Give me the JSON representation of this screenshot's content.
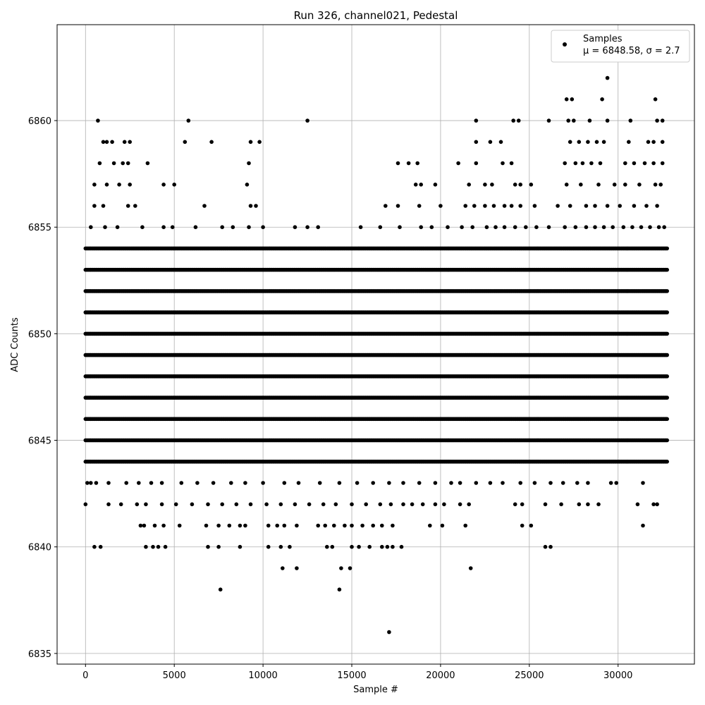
{
  "chart_data": {
    "type": "scatter",
    "title": "Run 326, channel021, Pedestal",
    "xlabel": "Sample #",
    "ylabel": "ADC Counts",
    "xlim": [
      -1600,
      34300
    ],
    "ylim": [
      6834.5,
      6864.5
    ],
    "xticks": [
      0,
      5000,
      10000,
      15000,
      20000,
      25000,
      30000
    ],
    "yticks": [
      6835,
      6840,
      6845,
      6850,
      6855,
      6860
    ],
    "grid": true,
    "legend_position": "top-right",
    "legend": {
      "label_line1": "Samples",
      "label_line2": "μ = 6848.58, σ = 2.7"
    },
    "series": [
      {
        "name": "Samples",
        "color": "#000000",
        "x_range": [
          0,
          32768
        ],
        "dense_levels": [
          6844,
          6845,
          6846,
          6847,
          6848,
          6849,
          6850,
          6851,
          6852,
          6853,
          6854
        ],
        "points": [
          [
            0,
            6842
          ],
          [
            500,
            6840
          ],
          [
            850,
            6840
          ],
          [
            3400,
            6840
          ],
          [
            3800,
            6840
          ],
          [
            4100,
            6840
          ],
          [
            4500,
            6840
          ],
          [
            6900,
            6840
          ],
          [
            7500,
            6840
          ],
          [
            8700,
            6840
          ],
          [
            10300,
            6840
          ],
          [
            11000,
            6840
          ],
          [
            11500,
            6840
          ],
          [
            13600,
            6840
          ],
          [
            13900,
            6840
          ],
          [
            15000,
            6840
          ],
          [
            15400,
            6840
          ],
          [
            16000,
            6840
          ],
          [
            16700,
            6840
          ],
          [
            17000,
            6840
          ],
          [
            17300,
            6840
          ],
          [
            17800,
            6840
          ],
          [
            25900,
            6840
          ],
          [
            26200,
            6840
          ],
          [
            11100,
            6839
          ],
          [
            11900,
            6839
          ],
          [
            14400,
            6839
          ],
          [
            14900,
            6839
          ],
          [
            21700,
            6839
          ],
          [
            7600,
            6838
          ],
          [
            14300,
            6838
          ],
          [
            17100,
            6836
          ],
          [
            700,
            6860
          ],
          [
            5800,
            6860
          ],
          [
            12500,
            6860
          ],
          [
            22000,
            6860
          ],
          [
            24100,
            6860
          ],
          [
            24400,
            6860
          ],
          [
            26100,
            6860
          ],
          [
            27200,
            6860
          ],
          [
            27500,
            6860
          ],
          [
            28400,
            6860
          ],
          [
            29400,
            6860
          ],
          [
            30700,
            6860
          ],
          [
            32200,
            6860
          ],
          [
            32500,
            6860
          ],
          [
            27100,
            6861
          ],
          [
            27400,
            6861
          ],
          [
            29100,
            6861
          ],
          [
            32100,
            6861
          ],
          [
            29400,
            6862
          ],
          [
            1000,
            6859
          ],
          [
            1200,
            6859
          ],
          [
            1500,
            6859
          ],
          [
            2200,
            6859
          ],
          [
            2500,
            6859
          ],
          [
            5600,
            6859
          ],
          [
            7100,
            6859
          ],
          [
            9300,
            6859
          ],
          [
            9800,
            6859
          ],
          [
            22000,
            6859
          ],
          [
            22800,
            6859
          ],
          [
            23400,
            6859
          ],
          [
            27300,
            6859
          ],
          [
            27800,
            6859
          ],
          [
            28300,
            6859
          ],
          [
            28800,
            6859
          ],
          [
            29200,
            6859
          ],
          [
            30600,
            6859
          ],
          [
            31700,
            6859
          ],
          [
            32000,
            6859
          ],
          [
            32500,
            6859
          ],
          [
            800,
            6858
          ],
          [
            1600,
            6858
          ],
          [
            2100,
            6858
          ],
          [
            2400,
            6858
          ],
          [
            3500,
            6858
          ],
          [
            9200,
            6858
          ],
          [
            17600,
            6858
          ],
          [
            18200,
            6858
          ],
          [
            18700,
            6858
          ],
          [
            21000,
            6858
          ],
          [
            22000,
            6858
          ],
          [
            23500,
            6858
          ],
          [
            24000,
            6858
          ],
          [
            27000,
            6858
          ],
          [
            27600,
            6858
          ],
          [
            28000,
            6858
          ],
          [
            28500,
            6858
          ],
          [
            29000,
            6858
          ],
          [
            30400,
            6858
          ],
          [
            30900,
            6858
          ],
          [
            31500,
            6858
          ],
          [
            32000,
            6858
          ],
          [
            32500,
            6858
          ],
          [
            500,
            6857
          ],
          [
            1200,
            6857
          ],
          [
            1900,
            6857
          ],
          [
            2500,
            6857
          ],
          [
            4400,
            6857
          ],
          [
            5000,
            6857
          ],
          [
            9100,
            6857
          ],
          [
            18600,
            6857
          ],
          [
            18900,
            6857
          ],
          [
            19700,
            6857
          ],
          [
            21600,
            6857
          ],
          [
            22500,
            6857
          ],
          [
            22900,
            6857
          ],
          [
            24200,
            6857
          ],
          [
            24500,
            6857
          ],
          [
            25100,
            6857
          ],
          [
            27100,
            6857
          ],
          [
            27900,
            6857
          ],
          [
            28900,
            6857
          ],
          [
            29800,
            6857
          ],
          [
            30400,
            6857
          ],
          [
            31200,
            6857
          ],
          [
            32100,
            6857
          ],
          [
            32400,
            6857
          ],
          [
            500,
            6856
          ],
          [
            1000,
            6856
          ],
          [
            2400,
            6856
          ],
          [
            2800,
            6856
          ],
          [
            6700,
            6856
          ],
          [
            9300,
            6856
          ],
          [
            9600,
            6856
          ],
          [
            16900,
            6856
          ],
          [
            17600,
            6856
          ],
          [
            18800,
            6856
          ],
          [
            20000,
            6856
          ],
          [
            21400,
            6856
          ],
          [
            21900,
            6856
          ],
          [
            22500,
            6856
          ],
          [
            23000,
            6856
          ],
          [
            23600,
            6856
          ],
          [
            24000,
            6856
          ],
          [
            24500,
            6856
          ],
          [
            25300,
            6856
          ],
          [
            26600,
            6856
          ],
          [
            27300,
            6856
          ],
          [
            28200,
            6856
          ],
          [
            28700,
            6856
          ],
          [
            29400,
            6856
          ],
          [
            30100,
            6856
          ],
          [
            30900,
            6856
          ],
          [
            31600,
            6856
          ],
          [
            32200,
            6856
          ],
          [
            300,
            6855
          ],
          [
            1100,
            6855
          ],
          [
            1800,
            6855
          ],
          [
            3200,
            6855
          ],
          [
            4400,
            6855
          ],
          [
            4900,
            6855
          ],
          [
            6200,
            6855
          ],
          [
            7700,
            6855
          ],
          [
            8300,
            6855
          ],
          [
            9200,
            6855
          ],
          [
            10000,
            6855
          ],
          [
            11800,
            6855
          ],
          [
            12500,
            6855
          ],
          [
            13100,
            6855
          ],
          [
            15500,
            6855
          ],
          [
            16600,
            6855
          ],
          [
            17700,
            6855
          ],
          [
            18900,
            6855
          ],
          [
            19500,
            6855
          ],
          [
            20400,
            6855
          ],
          [
            21200,
            6855
          ],
          [
            21800,
            6855
          ],
          [
            22600,
            6855
          ],
          [
            23100,
            6855
          ],
          [
            23600,
            6855
          ],
          [
            24200,
            6855
          ],
          [
            24800,
            6855
          ],
          [
            25400,
            6855
          ],
          [
            26100,
            6855
          ],
          [
            27000,
            6855
          ],
          [
            27600,
            6855
          ],
          [
            28200,
            6855
          ],
          [
            28700,
            6855
          ],
          [
            29200,
            6855
          ],
          [
            29700,
            6855
          ],
          [
            30300,
            6855
          ],
          [
            30800,
            6855
          ],
          [
            31300,
            6855
          ],
          [
            31800,
            6855
          ],
          [
            32300,
            6855
          ],
          [
            32600,
            6855
          ],
          [
            100,
            6843
          ],
          [
            300,
            6843
          ],
          [
            600,
            6843
          ],
          [
            1300,
            6843
          ],
          [
            2300,
            6843
          ],
          [
            3000,
            6843
          ],
          [
            3700,
            6843
          ],
          [
            4300,
            6843
          ],
          [
            5400,
            6843
          ],
          [
            6300,
            6843
          ],
          [
            7200,
            6843
          ],
          [
            8200,
            6843
          ],
          [
            9000,
            6843
          ],
          [
            10000,
            6843
          ],
          [
            11200,
            6843
          ],
          [
            12000,
            6843
          ],
          [
            13200,
            6843
          ],
          [
            14300,
            6843
          ],
          [
            15300,
            6843
          ],
          [
            16200,
            6843
          ],
          [
            17100,
            6843
          ],
          [
            17900,
            6843
          ],
          [
            18800,
            6843
          ],
          [
            19700,
            6843
          ],
          [
            20600,
            6843
          ],
          [
            21100,
            6843
          ],
          [
            22000,
            6843
          ],
          [
            22800,
            6843
          ],
          [
            23500,
            6843
          ],
          [
            24500,
            6843
          ],
          [
            25300,
            6843
          ],
          [
            26200,
            6843
          ],
          [
            26900,
            6843
          ],
          [
            27700,
            6843
          ],
          [
            28300,
            6843
          ],
          [
            29600,
            6843
          ],
          [
            29900,
            6843
          ],
          [
            31400,
            6843
          ],
          [
            1300,
            6842
          ],
          [
            2000,
            6842
          ],
          [
            2900,
            6842
          ],
          [
            3400,
            6842
          ],
          [
            4300,
            6842
          ],
          [
            5100,
            6842
          ],
          [
            6000,
            6842
          ],
          [
            6900,
            6842
          ],
          [
            7700,
            6842
          ],
          [
            8500,
            6842
          ],
          [
            9300,
            6842
          ],
          [
            10200,
            6842
          ],
          [
            11000,
            6842
          ],
          [
            11800,
            6842
          ],
          [
            12600,
            6842
          ],
          [
            13400,
            6842
          ],
          [
            14100,
            6842
          ],
          [
            15000,
            6842
          ],
          [
            15800,
            6842
          ],
          [
            16600,
            6842
          ],
          [
            17200,
            6842
          ],
          [
            17900,
            6842
          ],
          [
            18400,
            6842
          ],
          [
            19000,
            6842
          ],
          [
            19700,
            6842
          ],
          [
            20200,
            6842
          ],
          [
            21100,
            6842
          ],
          [
            21600,
            6842
          ],
          [
            24200,
            6842
          ],
          [
            24600,
            6842
          ],
          [
            25900,
            6842
          ],
          [
            26800,
            6842
          ],
          [
            27800,
            6842
          ],
          [
            28300,
            6842
          ],
          [
            28900,
            6842
          ],
          [
            31100,
            6842
          ],
          [
            32000,
            6842
          ],
          [
            32200,
            6842
          ],
          [
            3100,
            6841
          ],
          [
            3300,
            6841
          ],
          [
            3900,
            6841
          ],
          [
            4400,
            6841
          ],
          [
            5300,
            6841
          ],
          [
            6800,
            6841
          ],
          [
            7500,
            6841
          ],
          [
            8100,
            6841
          ],
          [
            8700,
            6841
          ],
          [
            9000,
            6841
          ],
          [
            10300,
            6841
          ],
          [
            10800,
            6841
          ],
          [
            11200,
            6841
          ],
          [
            11900,
            6841
          ],
          [
            13100,
            6841
          ],
          [
            13500,
            6841
          ],
          [
            14000,
            6841
          ],
          [
            14600,
            6841
          ],
          [
            15000,
            6841
          ],
          [
            15600,
            6841
          ],
          [
            16200,
            6841
          ],
          [
            16700,
            6841
          ],
          [
            17300,
            6841
          ],
          [
            19400,
            6841
          ],
          [
            20100,
            6841
          ],
          [
            21400,
            6841
          ],
          [
            24600,
            6841
          ],
          [
            25100,
            6841
          ],
          [
            31400,
            6841
          ]
        ]
      }
    ]
  }
}
